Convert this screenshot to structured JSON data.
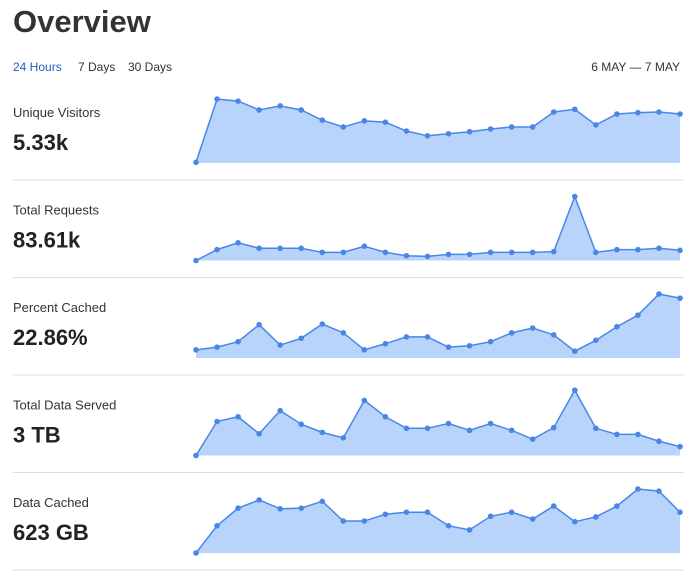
{
  "title": "Overview",
  "tabs": [
    "24 Hours",
    "7 Days",
    "30 Days"
  ],
  "date_range": "6 MAY — 7 MAY",
  "chart_data": [
    {
      "type": "line",
      "title": "Unique Visitors",
      "subtitle": "5.33k",
      "color": "#4a86e8",
      "fill": "#b9d4fb",
      "ylim": [
        0,
        100
      ],
      "values": [
        1,
        94,
        91,
        78,
        84,
        78,
        63,
        53,
        62,
        60,
        47,
        40,
        43,
        46,
        50,
        53,
        53,
        75,
        79,
        56,
        72,
        74,
        75,
        72
      ]
    },
    {
      "type": "line",
      "title": "Total Requests",
      "subtitle": "83.61k",
      "color": "#4a86e8",
      "fill": "#b9d4fb",
      "ylim": [
        0,
        100
      ],
      "values": [
        0,
        16,
        26,
        18,
        18,
        18,
        12,
        12,
        21,
        12,
        7,
        6,
        9,
        9,
        12,
        12,
        12,
        13,
        94,
        12,
        16,
        16,
        18,
        15
      ]
    },
    {
      "type": "line",
      "title": "Percent Cached",
      "subtitle": "22.86%",
      "color": "#4a86e8",
      "fill": "#b9d4fb",
      "ylim": [
        0,
        100
      ],
      "values": [
        12,
        16,
        24,
        49,
        19,
        29,
        50,
        37,
        12,
        21,
        31,
        31,
        16,
        18,
        24,
        37,
        44,
        34,
        10,
        26,
        46,
        63,
        94,
        88
      ]
    },
    {
      "type": "line",
      "title": "Total Data Served",
      "subtitle": "3 TB",
      "color": "#4a86e8",
      "fill": "#b9d4fb",
      "ylim": [
        0,
        100
      ],
      "values": [
        0,
        50,
        57,
        32,
        66,
        46,
        34,
        26,
        81,
        57,
        40,
        40,
        47,
        37,
        47,
        37,
        24,
        41,
        96,
        40,
        31,
        31,
        21,
        13
      ]
    },
    {
      "type": "line",
      "title": "Data Cached",
      "subtitle": "623 GB",
      "color": "#4a86e8",
      "fill": "#b9d4fb",
      "ylim": [
        0,
        100
      ],
      "values": [
        0,
        40,
        66,
        78,
        65,
        66,
        76,
        47,
        47,
        57,
        60,
        60,
        40,
        34,
        54,
        60,
        50,
        69,
        46,
        53,
        69,
        94,
        91,
        60
      ]
    }
  ]
}
